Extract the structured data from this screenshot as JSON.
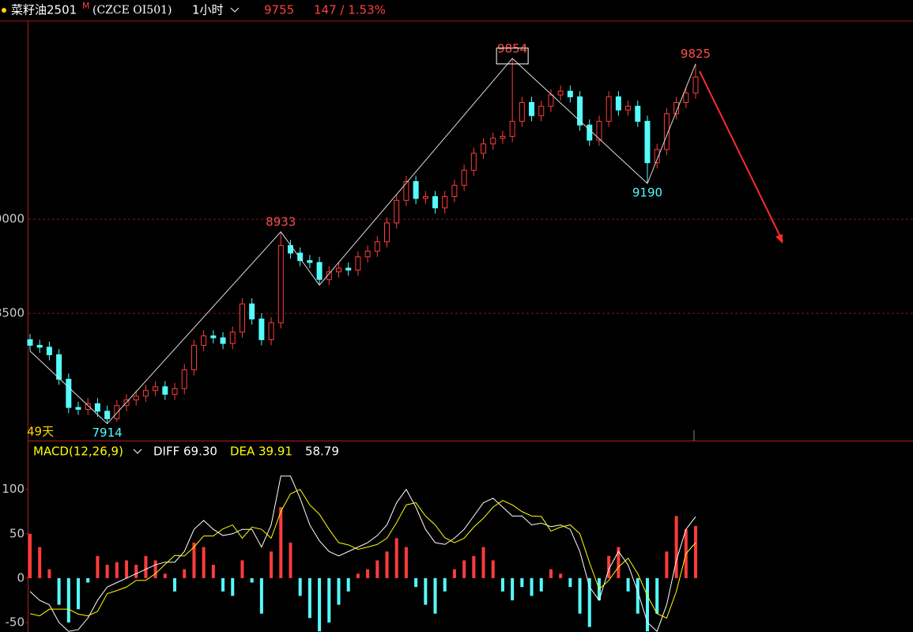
{
  "header": {
    "name": "菜籽油2501",
    "mark": "M",
    "code": "(CZCE OI501)",
    "period": "1小时",
    "price": "9755",
    "change": "147 / 1.53%"
  },
  "chart_data": [
    {
      "type": "candlestick",
      "open": [
        8360,
        8330,
        8320,
        8280,
        8150,
        8000,
        7990,
        8020,
        7980,
        7940,
        8010,
        8040,
        8060,
        8090,
        8110,
        8070,
        8100,
        8200,
        8330,
        8380,
        8370,
        8340,
        8400,
        8550,
        8470,
        8360,
        8450,
        8860,
        8820,
        8780,
        8770,
        8680,
        8720,
        8740,
        8730,
        8800,
        8830,
        8880,
        8980,
        9100,
        9200,
        9110,
        9120,
        9060,
        9120,
        9180,
        9260,
        9350,
        9400,
        9430,
        9440,
        9520,
        9620,
        9550,
        9600,
        9660,
        9680,
        9650,
        9500,
        9420,
        9520,
        9650,
        9580,
        9600,
        9520,
        9300,
        9370,
        9560,
        9620,
        9670
      ],
      "high": [
        8390,
        8360,
        8350,
        8310,
        8180,
        8030,
        8050,
        8050,
        8010,
        8040,
        8070,
        8090,
        8120,
        8140,
        8140,
        8130,
        8230,
        8360,
        8410,
        8410,
        8400,
        8430,
        8580,
        8580,
        8500,
        8480,
        8933,
        8890,
        8850,
        8810,
        8800,
        8750,
        8770,
        8770,
        8830,
        8860,
        8910,
        9010,
        9130,
        9230,
        9230,
        9150,
        9150,
        9150,
        9210,
        9290,
        9380,
        9430,
        9460,
        9470,
        9854,
        9650,
        9650,
        9630,
        9690,
        9710,
        9710,
        9680,
        9530,
        9550,
        9680,
        9680,
        9630,
        9630,
        9550,
        9400,
        9590,
        9650,
        9700,
        9825
      ],
      "low": [
        8300,
        8290,
        8250,
        8120,
        7970,
        7960,
        7960,
        7950,
        7914,
        7925,
        7980,
        8010,
        8030,
        8060,
        8040,
        8040,
        8070,
        8170,
        8300,
        8340,
        8310,
        8310,
        8370,
        8440,
        8330,
        8330,
        8420,
        8790,
        8750,
        8740,
        8650,
        8650,
        8690,
        8700,
        8700,
        8770,
        8800,
        8850,
        8950,
        9070,
        9080,
        9080,
        9030,
        9030,
        9090,
        9150,
        9230,
        9320,
        9370,
        9400,
        9410,
        9490,
        9520,
        9520,
        9570,
        9630,
        9620,
        9470,
        9390,
        9390,
        9490,
        9550,
        9550,
        9490,
        9190,
        9270,
        9340,
        9530,
        9590,
        9640
      ],
      "close": [
        8330,
        8320,
        8280,
        8150,
        8000,
        7990,
        8020,
        7980,
        7940,
        8010,
        8040,
        8060,
        8090,
        8110,
        8070,
        8100,
        8200,
        8330,
        8380,
        8370,
        8340,
        8400,
        8550,
        8470,
        8360,
        8450,
        8860,
        8820,
        8780,
        8770,
        8680,
        8720,
        8740,
        8730,
        8800,
        8830,
        8880,
        8980,
        9100,
        9200,
        9110,
        9120,
        9060,
        9120,
        9180,
        9260,
        9350,
        9400,
        9430,
        9440,
        9520,
        9620,
        9550,
        9600,
        9660,
        9680,
        9650,
        9500,
        9420,
        9520,
        9650,
        9580,
        9600,
        9520,
        9300,
        9370,
        9560,
        9620,
        9670,
        9755
      ],
      "up_color": "#ff3c3c",
      "down_color": "#54fcfc",
      "ylim": [
        7824,
        10055
      ],
      "yticks": [
        9000,
        8500
      ],
      "grid": true,
      "annotations": [
        "49天"
      ]
    },
    {
      "type": "macd",
      "title": "MACD(12,26,9)",
      "readout": [
        {
          "text": "DIFF 69.30",
          "color": "#ffffff"
        },
        {
          "text": "DEA 39.91",
          "color": "#ffff00"
        },
        {
          "text": "58.79",
          "color": "#ffffff"
        }
      ],
      "ylim": [
        -60.7,
        155
      ],
      "yticks": [
        100,
        50,
        0,
        -50
      ],
      "histogram": {
        "up_color": "#ff3c3c",
        "down_color": "#54fcfc",
        "values": [
          50,
          35,
          10,
          -30,
          -50,
          -35,
          -5,
          25,
          15,
          18,
          20,
          15,
          25,
          20,
          5,
          -15,
          10,
          40,
          35,
          15,
          -15,
          -20,
          20,
          -5,
          -40,
          30,
          80,
          40,
          -20,
          -45,
          -60,
          -50,
          -30,
          -15,
          5,
          10,
          20,
          30,
          45,
          35,
          -10,
          -30,
          -40,
          -15,
          10,
          20,
          25,
          35,
          20,
          -15,
          -25,
          -10,
          -20,
          -15,
          10,
          5,
          -10,
          -40,
          -55,
          -25,
          25,
          35,
          -15,
          -40,
          -60,
          -40,
          30,
          70,
          55,
          58.79
        ]
      },
      "series": [
        {
          "name": "DIFF",
          "color": "#ffffff",
          "values": [
            -15,
            -25,
            -30,
            -50,
            -60,
            -58,
            -45,
            -25,
            -10,
            -5,
            0,
            5,
            10,
            15,
            18,
            18,
            30,
            55,
            65,
            55,
            48,
            50,
            55,
            55,
            35,
            60,
            115,
            115,
            90,
            60,
            42,
            30,
            25,
            30,
            35,
            40,
            48,
            60,
            85,
            100,
            80,
            55,
            40,
            38,
            45,
            55,
            70,
            85,
            90,
            80,
            70,
            70,
            60,
            62,
            58,
            60,
            55,
            30,
            -10,
            -25,
            10,
            30,
            15,
            -15,
            -50,
            -60,
            -30,
            20,
            55,
            69.3
          ]
        },
        {
          "name": "DEA",
          "color": "#ffff00",
          "values": [
            -40,
            -42.5,
            -35,
            -35,
            -35,
            -40.5,
            -42.5,
            -37.5,
            -17.5,
            -14,
            -10,
            -2.5,
            -2.5,
            5,
            15.5,
            25.5,
            25,
            35,
            47.5,
            47.5,
            55.5,
            60,
            45,
            57.5,
            55,
            45,
            75,
            95,
            100,
            82.5,
            72,
            55,
            40,
            37.5,
            32.5,
            35,
            38,
            45,
            62.5,
            82.5,
            85,
            70,
            60,
            45.5,
            40,
            45,
            57.5,
            67.5,
            80,
            87.5,
            82.5,
            75,
            70,
            69.5,
            53,
            57.5,
            60,
            50,
            17.5,
            -12.5,
            -2.5,
            12.5,
            22.5,
            5,
            -20,
            -40,
            -45,
            -15,
            27.5,
            39.91
          ]
        }
      ]
    }
  ]
}
